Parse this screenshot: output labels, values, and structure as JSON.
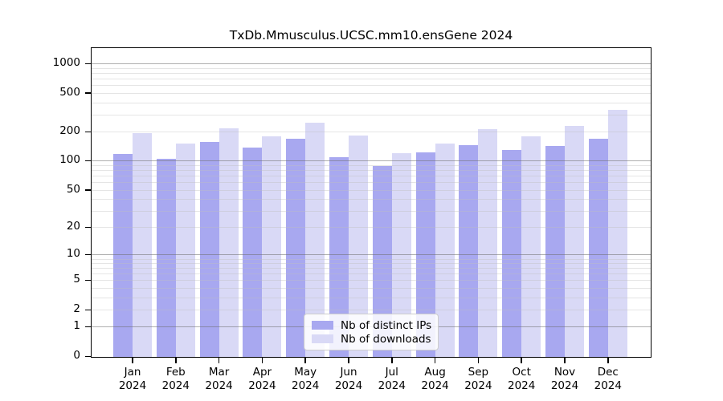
{
  "chart_data": {
    "type": "bar",
    "title": "TxDb.Mmusculus.UCSC.mm10.ensGene 2024",
    "categories": [
      "Jan",
      "Feb",
      "Mar",
      "Apr",
      "May",
      "Jun",
      "Jul",
      "Aug",
      "Sep",
      "Oct",
      "Nov",
      "Dec"
    ],
    "year": "2024",
    "series": [
      {
        "name": "Nb of distinct IPs",
        "color": "#a8a8f0",
        "values": [
          118,
          105,
          156,
          136,
          168,
          109,
          88,
          122,
          146,
          129,
          141,
          170
        ]
      },
      {
        "name": "Nb of downloads",
        "color": "#d9d9f6",
        "values": [
          193,
          151,
          217,
          178,
          247,
          181,
          121,
          151,
          214,
          180,
          228,
          335
        ]
      }
    ],
    "yscale": "log1p",
    "ytick_values": [
      0,
      1,
      2,
      5,
      10,
      20,
      50,
      100,
      200,
      500,
      1000
    ],
    "ylim": [
      0,
      1460
    ],
    "xlabel": "",
    "ylabel": "",
    "grid": true,
    "gridlines_over_bars": true,
    "legend_position": "bottom-center",
    "major_grid_values": [
      1,
      10,
      100,
      1000
    ],
    "minor_grid_values": [
      2,
      3,
      4,
      5,
      6,
      7,
      8,
      9,
      20,
      30,
      40,
      50,
      60,
      70,
      80,
      90,
      200,
      300,
      400,
      500,
      600,
      700,
      800,
      900
    ]
  }
}
